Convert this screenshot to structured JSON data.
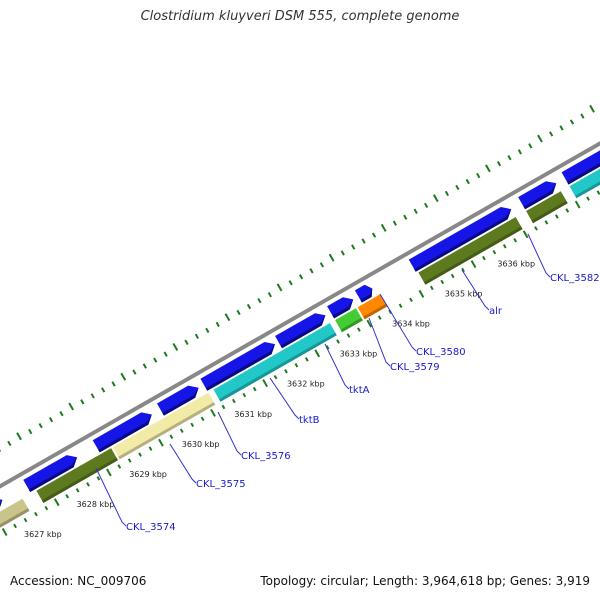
{
  "title": "Clostridium kluyveri DSM 555, complete genome",
  "footer": {
    "accession": "Accession: NC_009706",
    "summary": "Topology: circular; Length: 3,964,618 bp; Genes: 3,919"
  },
  "colors": {
    "backbone": "#888888",
    "cds_blue": "#1515e8",
    "cds_blue_dark": "#0a0a80",
    "tick": "#1e7a1e",
    "label": "#1a1acc",
    "leader_line": "#3333cc"
  },
  "kbp_labels": [
    "3627 kbp",
    "3628 kbp",
    "3629 kbp",
    "3630 kbp",
    "3631 kbp",
    "3632 kbp",
    "3633 kbp",
    "3634 kbp",
    "3635 kbp",
    "3636 kbp"
  ],
  "gene_labels": [
    "CKL_3574",
    "CKL_3575",
    "CKL_3576",
    "tktB",
    "tktA",
    "CKL_3579",
    "CKL_3580",
    "alr",
    "CKL_3582"
  ],
  "feature_colors": {
    "olive": "#5d7a1f",
    "khaki": "#c9c48a",
    "pale_yellow": "#f2eba8",
    "cyan": "#22c8c8",
    "green": "#44cc33",
    "orange": "#ff8800"
  }
}
